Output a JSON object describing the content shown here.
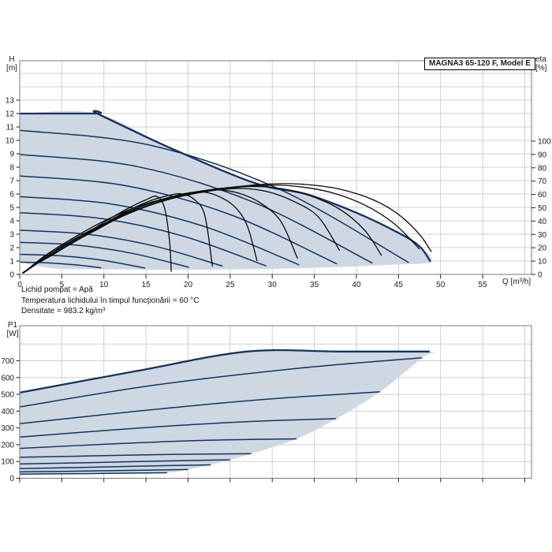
{
  "title_box": "MAGNA3 65-120 F, Model E",
  "labels": {
    "head_unit_1": "H",
    "head_unit_2": "[m]",
    "eta_unit_1": "eta",
    "eta_unit_2": "[%]",
    "power_unit_1": "P1",
    "power_unit_2": "[W]",
    "flow_axis": "Q [m³/h]"
  },
  "footer": {
    "line1": "Lichid pompat = Apă",
    "line2": "Temperatura lichidului în timpul funcţionării = 60 °C",
    "line3": "Densitate = 983.2 kg/m³"
  },
  "colors": {
    "fill": "#cdd8e3",
    "curve": "#17315f",
    "efficiency": "#0a0a0a",
    "grid": "#cfcfcf",
    "border": "#7a7a7a",
    "tick": "#222222",
    "text": "#1a1a1a"
  },
  "chart_data": [
    {
      "type": "line",
      "id": "head_efficiency",
      "x_axis": {
        "label": "Q [m³/h]",
        "tick_labels": [
          0,
          5,
          10,
          15,
          20,
          25,
          30,
          35,
          40,
          45,
          50,
          55
        ],
        "grid_max": 60,
        "range": [
          0,
          60.8
        ]
      },
      "y_axis_left": {
        "label": "H [m]",
        "tick_labels": [
          0,
          1,
          2,
          3,
          4,
          5,
          6,
          7,
          8,
          9,
          10,
          11,
          12,
          13
        ],
        "grid_max": 15,
        "range": [
          0,
          15.9
        ]
      },
      "y_axis_right": {
        "label": "eta [%]",
        "tick_labels": [
          0,
          10,
          20,
          30,
          40,
          50,
          60,
          70,
          80,
          90,
          100
        ],
        "range": [
          0,
          100
        ]
      },
      "max_head": 12,
      "max_flow": 48.8,
      "envelope": [
        [
          0,
          12
        ],
        [
          9.2,
          12
        ],
        [
          18,
          9.4
        ],
        [
          28,
          6.8
        ],
        [
          34,
          6.0
        ],
        [
          40,
          4.6
        ],
        [
          45,
          3.1
        ],
        [
          47.5,
          2.1
        ],
        [
          48.8,
          0.95
        ],
        [
          44,
          0.72
        ],
        [
          38,
          0.55
        ],
        [
          30,
          0.42
        ],
        [
          20,
          0.35
        ],
        [
          10,
          0.38
        ],
        [
          4,
          0.46
        ],
        [
          0,
          0.9
        ]
      ],
      "max_speed_curve": [
        [
          0,
          12
        ],
        [
          9.2,
          12
        ],
        [
          9.2,
          12
        ],
        [
          18,
          9.4
        ],
        [
          28,
          6.8
        ],
        [
          34,
          6.0
        ],
        [
          40,
          4.6
        ],
        [
          45,
          3.1
        ],
        [
          47.5,
          2.1
        ],
        [
          48.8,
          0.95
        ]
      ],
      "speed_curves": [
        [
          [
            0,
            10.75
          ],
          [
            15.4,
            9.65
          ],
          [
            30.8,
            6.37
          ],
          [
            46.2,
            0.89
          ]
        ],
        [
          [
            0,
            8.95
          ],
          [
            14,
            8.04
          ],
          [
            27.9,
            5.35
          ],
          [
            41.9,
            0.84
          ]
        ],
        [
          [
            0,
            7.35
          ],
          [
            12.6,
            6.62
          ],
          [
            25.1,
            4.44
          ],
          [
            37.7,
            0.78
          ]
        ],
        [
          [
            0,
            5.8
          ],
          [
            11.1,
            5.23
          ],
          [
            22.1,
            3.54
          ],
          [
            33.2,
            0.71
          ]
        ],
        [
          [
            0,
            4.6
          ],
          [
            9.8,
            4.16
          ],
          [
            19.5,
            2.84
          ],
          [
            29.3,
            0.63
          ]
        ],
        [
          [
            0,
            3.3
          ],
          [
            8,
            3.0
          ],
          [
            16.1,
            2.1
          ],
          [
            24.1,
            0.62
          ]
        ],
        [
          [
            0,
            2.4
          ],
          [
            6.7,
            2.19
          ],
          [
            13.4,
            1.57
          ],
          [
            20.1,
            0.53
          ]
        ],
        [
          [
            0,
            1.5
          ],
          [
            5,
            1.38
          ],
          [
            9.9,
            1.05
          ],
          [
            14.9,
            0.47
          ]
        ],
        [
          [
            0,
            0.92
          ],
          [
            3.2,
            0.87
          ],
          [
            6.5,
            0.72
          ],
          [
            9.7,
            0.49
          ]
        ]
      ],
      "efficiency_curves": [
        [
          [
            0.4,
            1
          ],
          [
            3,
            14
          ],
          [
            6,
            26
          ],
          [
            10,
            40
          ],
          [
            14,
            51
          ],
          [
            18,
            58
          ],
          [
            22,
            63
          ],
          [
            26,
            66
          ],
          [
            30,
            68
          ],
          [
            34,
            67.5
          ],
          [
            38,
            64
          ],
          [
            42,
            56
          ],
          [
            45,
            45
          ],
          [
            47.5,
            30
          ],
          [
            48.9,
            17
          ]
        ],
        [
          [
            0.4,
            1
          ],
          [
            3,
            13
          ],
          [
            6,
            25
          ],
          [
            10,
            38
          ],
          [
            14,
            49
          ],
          [
            18,
            57
          ],
          [
            22,
            62
          ],
          [
            26,
            65.5
          ],
          [
            29.5,
            67
          ],
          [
            33,
            66
          ],
          [
            37,
            61.5
          ],
          [
            41,
            52
          ],
          [
            44.5,
            38
          ],
          [
            47.5,
            19
          ]
        ],
        [
          [
            0.4,
            1
          ],
          [
            3,
            13
          ],
          [
            6,
            24
          ],
          [
            9,
            34
          ],
          [
            13,
            46
          ],
          [
            17,
            55
          ],
          [
            21,
            61
          ],
          [
            25,
            65
          ],
          [
            28,
            66
          ],
          [
            31,
            64.5
          ],
          [
            34.5,
            59
          ],
          [
            38,
            49
          ],
          [
            41,
            33
          ],
          [
            43,
            14
          ]
        ],
        [
          [
            0.4,
            1
          ],
          [
            3,
            12
          ],
          [
            6,
            23
          ],
          [
            9,
            33
          ],
          [
            12,
            43
          ],
          [
            16,
            53
          ],
          [
            20,
            60
          ],
          [
            23.5,
            63.5
          ],
          [
            26.5,
            64.5
          ],
          [
            29.5,
            62
          ],
          [
            32.5,
            55
          ],
          [
            35.5,
            43
          ],
          [
            38,
            18
          ]
        ],
        [
          [
            0.4,
            1
          ],
          [
            2.5,
            10
          ],
          [
            5,
            19
          ],
          [
            8,
            30
          ],
          [
            11,
            41
          ],
          [
            14,
            50
          ],
          [
            17.5,
            57
          ],
          [
            21,
            62
          ],
          [
            23.5,
            63.5
          ],
          [
            26,
            61
          ],
          [
            28.5,
            54
          ],
          [
            31,
            40
          ],
          [
            33,
            12
          ]
        ],
        [
          [
            0.4,
            1
          ],
          [
            2.5,
            10
          ],
          [
            5,
            19
          ],
          [
            8,
            30
          ],
          [
            11,
            41
          ],
          [
            14,
            50
          ],
          [
            17,
            56.5
          ],
          [
            19.5,
            60.5
          ],
          [
            21.5,
            62
          ],
          [
            23.5,
            59
          ],
          [
            25.5,
            51
          ],
          [
            27,
            37
          ],
          [
            28.2,
            10
          ]
        ],
        [
          [
            0.3,
            1
          ],
          [
            2,
            8
          ],
          [
            4,
            15
          ],
          [
            6,
            23
          ],
          [
            9,
            34
          ],
          [
            12,
            45
          ],
          [
            15,
            54
          ],
          [
            17.5,
            59
          ],
          [
            19.2,
            60.5
          ],
          [
            20.8,
            56
          ],
          [
            22,
            44
          ],
          [
            22.9,
            6
          ]
        ],
        [
          [
            0.3,
            1
          ],
          [
            2,
            8
          ],
          [
            4,
            15
          ],
          [
            6,
            23
          ],
          [
            8,
            31
          ],
          [
            10.5,
            41
          ],
          [
            13,
            50
          ],
          [
            15,
            56
          ],
          [
            16.3,
            58.5
          ],
          [
            17.2,
            50
          ],
          [
            17.8,
            25
          ],
          [
            18,
            2
          ]
        ]
      ]
    },
    {
      "type": "line",
      "id": "power_p1",
      "y_axis_left": {
        "label": "P1 [W]",
        "tick_labels": [
          0,
          100,
          200,
          300,
          400,
          500,
          600,
          700
        ],
        "grid_max": 800,
        "range": [
          0,
          909
        ]
      },
      "x_axis": {
        "label": "",
        "grid_max": 60,
        "range": [
          0,
          60.8
        ]
      },
      "power_limit_watts": 755,
      "envelope": [
        [
          0,
          510
        ],
        [
          14,
          640
        ],
        [
          27,
          755
        ],
        [
          38,
          755
        ],
        [
          48.7,
          755
        ],
        [
          47.8,
          718
        ],
        [
          42.8,
          515
        ],
        [
          37.6,
          355
        ],
        [
          32.9,
          235
        ],
        [
          27.5,
          146
        ],
        [
          25,
          110
        ],
        [
          22.7,
          80
        ],
        [
          20,
          52
        ],
        [
          17.5,
          33
        ],
        [
          12,
          29
        ],
        [
          6,
          26
        ],
        [
          0,
          24
        ]
      ],
      "max_power_curve": [
        [
          0,
          510
        ],
        [
          14,
          640
        ],
        [
          27,
          755
        ],
        [
          38,
          755
        ],
        [
          48.7,
          755
        ]
      ],
      "power_curves": [
        [
          [
            0,
            425
          ],
          [
            16,
            555
          ],
          [
            33,
            655
          ],
          [
            47.8,
            718
          ]
        ],
        [
          [
            0,
            325
          ],
          [
            14,
            400
          ],
          [
            29,
            470
          ],
          [
            42.8,
            515
          ]
        ],
        [
          [
            0,
            245
          ],
          [
            13,
            295
          ],
          [
            26,
            335
          ],
          [
            37.6,
            355
          ]
        ],
        [
          [
            0,
            178
          ],
          [
            11,
            205
          ],
          [
            22,
            226
          ],
          [
            32.9,
            235
          ]
        ],
        [
          [
            0,
            125
          ],
          [
            9,
            134
          ],
          [
            18,
            142
          ],
          [
            27.5,
            146
          ]
        ],
        [
          [
            0,
            85
          ],
          [
            8,
            93
          ],
          [
            17,
            103
          ],
          [
            25,
            110
          ]
        ],
        [
          [
            0,
            58
          ],
          [
            7,
            64
          ],
          [
            15,
            73
          ],
          [
            22.7,
            80
          ]
        ],
        [
          [
            0,
            38
          ],
          [
            6,
            42
          ],
          [
            13,
            47
          ],
          [
            20,
            52
          ]
        ],
        [
          [
            0,
            25
          ],
          [
            6,
            27
          ],
          [
            12,
            30
          ],
          [
            17.5,
            33
          ]
        ]
      ]
    }
  ]
}
